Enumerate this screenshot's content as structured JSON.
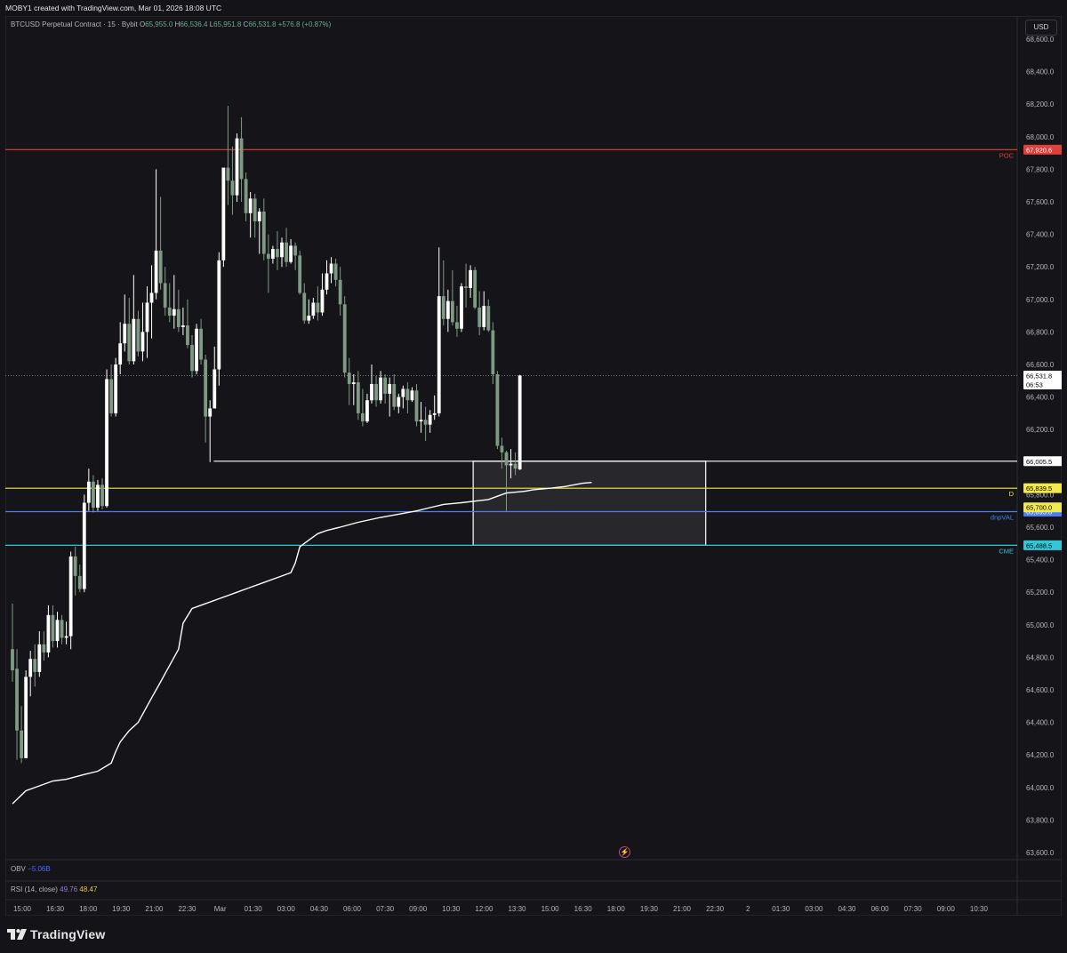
{
  "header": {
    "created_by": "MOBY1 created with TradingView.com, Mar 01, 2026 18:08 UTC"
  },
  "legend": {
    "symbol": "BTCUSD Perpetual Contract · 15 · Bybit",
    "o_label": "O",
    "o": "65,955.0",
    "h_label": "H",
    "h": "66,536.4",
    "l_label": "L",
    "l": "65,951.8",
    "c_label": "C",
    "c": "66,531.8",
    "change": "+576.8 (+0.87%)"
  },
  "currency_button": "USD",
  "indicators": {
    "obv_label": "OBV",
    "obv_value": "−5.06B",
    "rsi_label": "RSI (14, close)",
    "rsi_value": "49.76",
    "rsi_ma": "48.47"
  },
  "brand": {
    "name": "TradingView"
  },
  "colors": {
    "background": "#151519",
    "bull_candle": "#ffffff",
    "bear_candle": "#7e9a83",
    "poc": "#e0403a",
    "yellow_level": "#f2e94e",
    "blue_level": "#4a7ef7",
    "cyan_level": "#33c6d6",
    "vwap": "#ffffff",
    "box_fill": "#2a2a30"
  },
  "chart_data": {
    "type": "candlestick",
    "title": "BTCUSD Perpetual Contract · 15 · Bybit",
    "ylim": [
      63550,
      68800
    ],
    "y_ticks": [
      63600,
      63800,
      64000,
      64200,
      64400,
      64600,
      64800,
      65000,
      65200,
      65400,
      65600,
      65800,
      66000,
      66200,
      66400,
      66600,
      66800,
      67000,
      67200,
      67400,
      67600,
      67800,
      68000,
      68200,
      68400,
      68600
    ],
    "x_ticks": [
      "15:00",
      "16:30",
      "18:00",
      "19:30",
      "21:00",
      "22:30",
      "Mar",
      "01:30",
      "03:00",
      "04:30",
      "06:00",
      "07:30",
      "09:00",
      "10:30",
      "12:00",
      "13:30",
      "15:00",
      "16:30",
      "18:00",
      "19:30",
      "21:00",
      "22:30",
      "2",
      "01:30",
      "03:00",
      "04:30",
      "06:00",
      "07:30",
      "09:00",
      "10:30"
    ],
    "candles": [
      {
        "o": 64850,
        "h": 65130,
        "l": 64650,
        "c": 64720
      },
      {
        "o": 64730,
        "h": 64850,
        "l": 64170,
        "c": 64350
      },
      {
        "o": 64350,
        "h": 64500,
        "l": 64150,
        "c": 64180
      },
      {
        "o": 64180,
        "h": 64720,
        "l": 64180,
        "c": 64680
      },
      {
        "o": 64680,
        "h": 64840,
        "l": 64560,
        "c": 64790
      },
      {
        "o": 64790,
        "h": 64880,
        "l": 64620,
        "c": 64710
      },
      {
        "o": 64710,
        "h": 64960,
        "l": 64680,
        "c": 64880
      },
      {
        "o": 64880,
        "h": 64960,
        "l": 64780,
        "c": 64830
      },
      {
        "o": 64830,
        "h": 65120,
        "l": 64800,
        "c": 65060
      },
      {
        "o": 65060,
        "h": 65120,
        "l": 64860,
        "c": 64900
      },
      {
        "o": 64900,
        "h": 65080,
        "l": 64860,
        "c": 65030
      },
      {
        "o": 65030,
        "h": 65060,
        "l": 64880,
        "c": 64920
      },
      {
        "o": 64920,
        "h": 65020,
        "l": 64880,
        "c": 64930
      },
      {
        "o": 64930,
        "h": 65450,
        "l": 64850,
        "c": 65420
      },
      {
        "o": 65420,
        "h": 65480,
        "l": 65180,
        "c": 65300
      },
      {
        "o": 65300,
        "h": 65370,
        "l": 65200,
        "c": 65220
      },
      {
        "o": 65220,
        "h": 65800,
        "l": 65200,
        "c": 65750
      },
      {
        "o": 65750,
        "h": 65960,
        "l": 65700,
        "c": 65880
      },
      {
        "o": 65880,
        "h": 65920,
        "l": 65690,
        "c": 65720
      },
      {
        "o": 65720,
        "h": 65890,
        "l": 65700,
        "c": 65860
      },
      {
        "o": 65860,
        "h": 65900,
        "l": 65710,
        "c": 65730
      },
      {
        "o": 65730,
        "h": 66570,
        "l": 65720,
        "c": 66510
      },
      {
        "o": 66510,
        "h": 66600,
        "l": 66280,
        "c": 66300
      },
      {
        "o": 66300,
        "h": 66640,
        "l": 66280,
        "c": 66600
      },
      {
        "o": 66600,
        "h": 66860,
        "l": 66540,
        "c": 66730
      },
      {
        "o": 66730,
        "h": 67030,
        "l": 66680,
        "c": 66850
      },
      {
        "o": 66850,
        "h": 67010,
        "l": 66600,
        "c": 66620
      },
      {
        "o": 66620,
        "h": 67150,
        "l": 66600,
        "c": 66880
      },
      {
        "o": 66880,
        "h": 66930,
        "l": 66650,
        "c": 66680
      },
      {
        "o": 66680,
        "h": 66980,
        "l": 66620,
        "c": 66800
      },
      {
        "o": 66800,
        "h": 67080,
        "l": 66640,
        "c": 66980
      },
      {
        "o": 66980,
        "h": 67210,
        "l": 66760,
        "c": 67040
      },
      {
        "o": 67040,
        "h": 67800,
        "l": 67000,
        "c": 67300
      },
      {
        "o": 67300,
        "h": 67630,
        "l": 67060,
        "c": 67100
      },
      {
        "o": 67100,
        "h": 67200,
        "l": 66900,
        "c": 66950
      },
      {
        "o": 66950,
        "h": 67100,
        "l": 66860,
        "c": 66900
      },
      {
        "o": 66900,
        "h": 67150,
        "l": 66820,
        "c": 66940
      },
      {
        "o": 66940,
        "h": 67060,
        "l": 66800,
        "c": 66830
      },
      {
        "o": 66830,
        "h": 66950,
        "l": 66780,
        "c": 66840
      },
      {
        "o": 66840,
        "h": 67000,
        "l": 66700,
        "c": 66720
      },
      {
        "o": 66720,
        "h": 66780,
        "l": 66520,
        "c": 66560
      },
      {
        "o": 66560,
        "h": 66850,
        "l": 66540,
        "c": 66820
      },
      {
        "o": 66820,
        "h": 66880,
        "l": 66600,
        "c": 66630
      },
      {
        "o": 66630,
        "h": 66660,
        "l": 66120,
        "c": 66280
      },
      {
        "o": 66280,
        "h": 66380,
        "l": 66000,
        "c": 66330
      },
      {
        "o": 66330,
        "h": 66710,
        "l": 66330,
        "c": 66570
      },
      {
        "o": 66570,
        "h": 67290,
        "l": 66470,
        "c": 67240
      },
      {
        "o": 67240,
        "h": 67780,
        "l": 67200,
        "c": 67810
      },
      {
        "o": 67810,
        "h": 68190,
        "l": 67580,
        "c": 67730
      },
      {
        "o": 67730,
        "h": 67940,
        "l": 67520,
        "c": 67640
      },
      {
        "o": 67640,
        "h": 68020,
        "l": 67600,
        "c": 67990
      },
      {
        "o": 67990,
        "h": 68120,
        "l": 67600,
        "c": 67740
      },
      {
        "o": 67740,
        "h": 67780,
        "l": 67480,
        "c": 67530
      },
      {
        "o": 67530,
        "h": 67660,
        "l": 67380,
        "c": 67620
      },
      {
        "o": 67620,
        "h": 67650,
        "l": 67380,
        "c": 67480
      },
      {
        "o": 67480,
        "h": 67560,
        "l": 67280,
        "c": 67540
      },
      {
        "o": 67540,
        "h": 67620,
        "l": 67240,
        "c": 67280
      },
      {
        "o": 67280,
        "h": 67400,
        "l": 67040,
        "c": 67250
      },
      {
        "o": 67250,
        "h": 67330,
        "l": 67220,
        "c": 67310
      },
      {
        "o": 67310,
        "h": 67420,
        "l": 67180,
        "c": 67260
      },
      {
        "o": 67260,
        "h": 67380,
        "l": 67200,
        "c": 67350
      },
      {
        "o": 67350,
        "h": 67440,
        "l": 67200,
        "c": 67230
      },
      {
        "o": 67230,
        "h": 67370,
        "l": 67220,
        "c": 67330
      },
      {
        "o": 67330,
        "h": 67350,
        "l": 67180,
        "c": 67270
      },
      {
        "o": 67270,
        "h": 67300,
        "l": 67030,
        "c": 67040
      },
      {
        "o": 67040,
        "h": 67100,
        "l": 66850,
        "c": 66870
      },
      {
        "o": 66870,
        "h": 67000,
        "l": 66850,
        "c": 66900
      },
      {
        "o": 66900,
        "h": 67010,
        "l": 66880,
        "c": 66980
      },
      {
        "o": 66980,
        "h": 67080,
        "l": 66870,
        "c": 66920
      },
      {
        "o": 66920,
        "h": 67160,
        "l": 66900,
        "c": 67060
      },
      {
        "o": 67060,
        "h": 67240,
        "l": 67030,
        "c": 67160
      },
      {
        "o": 67160,
        "h": 67260,
        "l": 67100,
        "c": 67220
      },
      {
        "o": 67220,
        "h": 67250,
        "l": 67080,
        "c": 67120
      },
      {
        "o": 67120,
        "h": 67200,
        "l": 66900,
        "c": 66970
      },
      {
        "o": 66970,
        "h": 67020,
        "l": 66520,
        "c": 66550
      },
      {
        "o": 66550,
        "h": 66640,
        "l": 66350,
        "c": 66480
      },
      {
        "o": 66480,
        "h": 66540,
        "l": 66350,
        "c": 66490
      },
      {
        "o": 66490,
        "h": 66560,
        "l": 66260,
        "c": 66300
      },
      {
        "o": 66300,
        "h": 66450,
        "l": 66220,
        "c": 66250
      },
      {
        "o": 66250,
        "h": 66420,
        "l": 66240,
        "c": 66380
      },
      {
        "o": 66380,
        "h": 66600,
        "l": 66360,
        "c": 66480
      },
      {
        "o": 66480,
        "h": 66530,
        "l": 66340,
        "c": 66380
      },
      {
        "o": 66380,
        "h": 66560,
        "l": 66360,
        "c": 66520
      },
      {
        "o": 66520,
        "h": 66540,
        "l": 66360,
        "c": 66420
      },
      {
        "o": 66420,
        "h": 66520,
        "l": 66280,
        "c": 66480
      },
      {
        "o": 66480,
        "h": 66540,
        "l": 66320,
        "c": 66340
      },
      {
        "o": 66340,
        "h": 66420,
        "l": 66300,
        "c": 66400
      },
      {
        "o": 66400,
        "h": 66470,
        "l": 66330,
        "c": 66450
      },
      {
        "o": 66450,
        "h": 66490,
        "l": 66300,
        "c": 66380
      },
      {
        "o": 66380,
        "h": 66460,
        "l": 66370,
        "c": 66440
      },
      {
        "o": 66440,
        "h": 66480,
        "l": 66220,
        "c": 66250
      },
      {
        "o": 66250,
        "h": 66370,
        "l": 66180,
        "c": 66260
      },
      {
        "o": 66260,
        "h": 66340,
        "l": 66130,
        "c": 66230
      },
      {
        "o": 66230,
        "h": 66320,
        "l": 66180,
        "c": 66290
      },
      {
        "o": 66290,
        "h": 66410,
        "l": 66260,
        "c": 66300
      },
      {
        "o": 66300,
        "h": 67320,
        "l": 66280,
        "c": 67020
      },
      {
        "o": 67020,
        "h": 67240,
        "l": 66840,
        "c": 66880
      },
      {
        "o": 66880,
        "h": 67060,
        "l": 66800,
        "c": 66990
      },
      {
        "o": 66990,
        "h": 67180,
        "l": 66840,
        "c": 66860
      },
      {
        "o": 66860,
        "h": 66960,
        "l": 66770,
        "c": 66820
      },
      {
        "o": 66820,
        "h": 67100,
        "l": 66800,
        "c": 67080
      },
      {
        "o": 67080,
        "h": 67220,
        "l": 66950,
        "c": 67070
      },
      {
        "o": 67070,
        "h": 67210,
        "l": 67010,
        "c": 67180
      },
      {
        "o": 67180,
        "h": 67200,
        "l": 66940,
        "c": 66950
      },
      {
        "o": 66950,
        "h": 67050,
        "l": 66780,
        "c": 66830
      },
      {
        "o": 66830,
        "h": 67050,
        "l": 66810,
        "c": 66960
      },
      {
        "o": 66960,
        "h": 67000,
        "l": 66800,
        "c": 66810
      },
      {
        "o": 66810,
        "h": 66860,
        "l": 66480,
        "c": 66540
      },
      {
        "o": 66540,
        "h": 66560,
        "l": 66080,
        "c": 66100
      },
      {
        "o": 66100,
        "h": 66150,
        "l": 65960,
        "c": 66060
      },
      {
        "o": 66060,
        "h": 66070,
        "l": 65700,
        "c": 65980
      },
      {
        "o": 65980,
        "h": 66080,
        "l": 65900,
        "c": 65990
      },
      {
        "o": 65990,
        "h": 66060,
        "l": 65920,
        "c": 65960
      },
      {
        "o": 65955,
        "h": 66536.4,
        "l": 65951.8,
        "c": 66531.8
      }
    ],
    "vwap": [
      [
        0,
        63900
      ],
      [
        3,
        63980
      ],
      [
        6,
        64010
      ],
      [
        9,
        64040
      ],
      [
        12,
        64050
      ],
      [
        16,
        64080
      ],
      [
        19,
        64100
      ],
      [
        22,
        64150
      ],
      [
        23,
        64220
      ],
      [
        24,
        64280
      ],
      [
        26,
        64350
      ],
      [
        28,
        64400
      ],
      [
        31,
        64550
      ],
      [
        33,
        64650
      ],
      [
        34,
        64700
      ],
      [
        37,
        64850
      ],
      [
        38,
        65010
      ],
      [
        40,
        65100
      ],
      [
        42,
        65120
      ],
      [
        44,
        65140
      ],
      [
        46,
        65160
      ],
      [
        48,
        65180
      ],
      [
        50,
        65200
      ],
      [
        52,
        65220
      ],
      [
        56,
        65260
      ],
      [
        60,
        65300
      ],
      [
        62,
        65320
      ],
      [
        63,
        65380
      ],
      [
        64,
        65480
      ],
      [
        66,
        65520
      ],
      [
        68,
        65560
      ],
      [
        70,
        65580
      ],
      [
        73,
        65600
      ],
      [
        77,
        65630
      ],
      [
        82,
        65660
      ],
      [
        86,
        65680
      ],
      [
        90,
        65700
      ],
      [
        93,
        65720
      ],
      [
        96,
        65740
      ],
      [
        100,
        65750
      ],
      [
        103,
        65760
      ],
      [
        106,
        65770
      ],
      [
        108,
        65790
      ],
      [
        110,
        65810
      ],
      [
        114,
        65820
      ],
      [
        116,
        65830
      ],
      [
        120,
        65840
      ],
      [
        123,
        65850
      ],
      [
        125,
        65860
      ],
      [
        127,
        65870
      ],
      [
        129,
        65875
      ]
    ],
    "levels": [
      {
        "name": "POC",
        "value": 67920.6,
        "label": "67,920.6",
        "color": "#e0403a",
        "start_index": 0
      },
      {
        "name": "",
        "value": 66005.5,
        "label": "66,005.5",
        "color": "#ffffff",
        "start_index": 46
      },
      {
        "name": "D",
        "value": 65839.5,
        "label": "65,839.5",
        "color": "#f2e94e",
        "start_index": 0
      },
      {
        "name": "dnpVAL",
        "value": 65695.8,
        "label": "65,695.8",
        "color": "#4a7ef7",
        "start_index": 0
      },
      {
        "name": "CME",
        "value": 65488.5,
        "label": "65,488.5",
        "color": "#33c6d6",
        "start_index": 0
      }
    ],
    "extra_price_labels": [
      {
        "label": "65,700.0",
        "value": 65700.0,
        "color": "#f2e94e"
      }
    ],
    "last_price": {
      "value": 66531.8,
      "label": "66,531.8",
      "countdown": "06:53"
    },
    "range_box": {
      "from_index": 103,
      "to_index": 154,
      "top": 66005.5,
      "bottom": 65488.5
    }
  }
}
